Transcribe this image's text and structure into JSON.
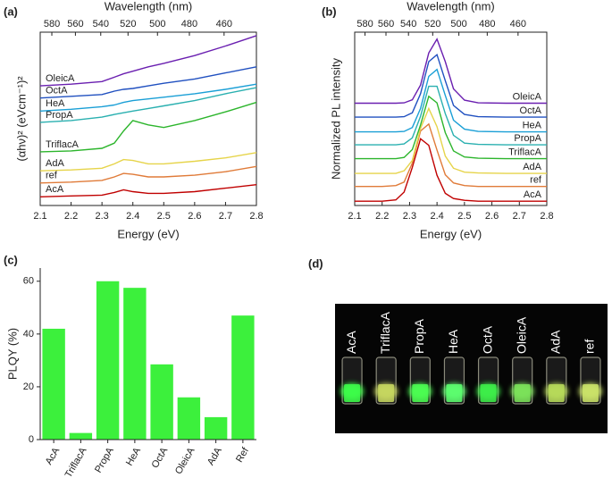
{
  "chart_data": [
    {
      "type": "line",
      "panel": "(a)",
      "xlabel": "Energy (eV)",
      "ylabel": "(αhν)² (eVcm⁻¹)²",
      "top_label": "Wavelength (nm)",
      "xlim": [
        2.1,
        2.8
      ],
      "xticks": [
        2.1,
        2.2,
        2.3,
        2.4,
        2.5,
        2.6,
        2.7,
        2.8
      ],
      "top_ticks": [
        580,
        560,
        540,
        520,
        500,
        480,
        460
      ],
      "ylim": [
        0,
        20
      ],
      "x": [
        2.1,
        2.2,
        2.3,
        2.34,
        2.37,
        2.4,
        2.45,
        2.5,
        2.6,
        2.7,
        2.8
      ],
      "series": [
        {
          "name": "AcA",
          "color": "#c00000",
          "values": [
            1.0,
            1.1,
            1.2,
            1.5,
            1.8,
            1.6,
            1.4,
            1.4,
            1.6,
            2.0,
            2.4
          ]
        },
        {
          "name": "ref",
          "color": "#e07b39",
          "values": [
            2.6,
            2.7,
            2.9,
            3.3,
            3.7,
            3.6,
            3.3,
            3.3,
            3.5,
            3.9,
            4.5
          ]
        },
        {
          "name": "AdA",
          "color": "#e6d44a",
          "values": [
            4.0,
            4.1,
            4.3,
            4.8,
            5.3,
            5.2,
            4.8,
            4.8,
            5.1,
            5.5,
            6.1
          ]
        },
        {
          "name": "TriflacA",
          "color": "#2cb52c",
          "values": [
            6.2,
            6.3,
            6.6,
            7.2,
            8.6,
            9.8,
            9.3,
            9.0,
            9.8,
            10.8,
            11.9
          ]
        },
        {
          "name": "PropA",
          "color": "#2ab0b0",
          "values": [
            9.6,
            9.8,
            10.2,
            10.5,
            10.7,
            10.9,
            11.2,
            11.5,
            12.1,
            12.9,
            13.6
          ]
        },
        {
          "name": "HeA",
          "color": "#1a9fd6",
          "values": [
            10.9,
            11.1,
            11.4,
            11.6,
            11.9,
            12.1,
            12.3,
            12.5,
            12.9,
            13.4,
            14.0
          ]
        },
        {
          "name": "OctA",
          "color": "#2050c0",
          "values": [
            12.4,
            12.6,
            12.8,
            13.2,
            13.4,
            13.5,
            13.8,
            14.1,
            14.6,
            15.3,
            16.0
          ]
        },
        {
          "name": "OleicA",
          "color": "#6a1fb0",
          "values": [
            13.8,
            14.0,
            14.3,
            14.8,
            15.2,
            15.5,
            16.0,
            16.4,
            17.3,
            18.4,
            19.6
          ]
        }
      ]
    },
    {
      "type": "line",
      "panel": "(b)",
      "xlabel": "Energy (eV)",
      "ylabel": "Normalized PL intensity",
      "top_label": "Wavelength (nm)",
      "xlim": [
        2.1,
        2.8
      ],
      "xticks": [
        2.1,
        2.2,
        2.3,
        2.4,
        2.5,
        2.6,
        2.7,
        2.8
      ],
      "top_ticks": [
        580,
        560,
        540,
        520,
        500,
        480,
        460
      ],
      "ylim": [
        0,
        20
      ],
      "legend": "right",
      "x": [
        2.1,
        2.2,
        2.25,
        2.28,
        2.31,
        2.34,
        2.37,
        2.4,
        2.43,
        2.46,
        2.5,
        2.55,
        2.65,
        2.8
      ],
      "series": [
        {
          "name": "AcA",
          "color": "#c00000",
          "values": [
            0.5,
            0.5,
            0.65,
            1.55,
            4.4,
            7.7,
            6.95,
            3.5,
            1.4,
            0.8,
            0.6,
            0.5,
            0.5,
            0.5
          ]
        },
        {
          "name": "ref",
          "color": "#e07b39",
          "values": [
            2.2,
            2.2,
            2.3,
            2.7,
            4.9,
            8.6,
            9.4,
            6.4,
            3.55,
            2.6,
            2.3,
            2.2,
            2.2,
            2.2
          ]
        },
        {
          "name": "AdA",
          "color": "#e6d44a",
          "values": [
            3.7,
            3.7,
            3.7,
            4.0,
            5.2,
            8.9,
            11.2,
            9.1,
            5.7,
            4.3,
            3.85,
            3.75,
            3.7,
            3.7
          ]
        },
        {
          "name": "TriflacA",
          "color": "#2cb52c",
          "values": [
            5.4,
            5.4,
            5.4,
            5.55,
            6.45,
            9.3,
            12.6,
            11.85,
            8.4,
            6.3,
            5.6,
            5.45,
            5.4,
            5.4
          ]
        },
        {
          "name": "PropA",
          "color": "#2ab0b0",
          "values": [
            7.0,
            7.0,
            7.0,
            7.1,
            7.8,
            10.3,
            13.75,
            13.75,
            10.6,
            8.1,
            7.2,
            7.05,
            7.0,
            7.0
          ]
        },
        {
          "name": "HeA",
          "color": "#1a9fd6",
          "values": [
            8.5,
            8.5,
            8.5,
            8.55,
            9.0,
            11.2,
            14.9,
            15.7,
            12.7,
            9.85,
            8.8,
            8.55,
            8.5,
            8.5
          ]
        },
        {
          "name": "OctA",
          "color": "#2050c0",
          "values": [
            10.2,
            10.2,
            10.2,
            10.25,
            10.7,
            12.9,
            16.6,
            17.4,
            14.4,
            11.55,
            10.5,
            10.25,
            10.2,
            10.2
          ]
        },
        {
          "name": "OleicA",
          "color": "#6a1fb0",
          "values": [
            11.8,
            11.8,
            11.8,
            11.85,
            12.2,
            13.9,
            17.6,
            19.2,
            16.6,
            13.45,
            12.15,
            11.85,
            11.8,
            11.8
          ]
        }
      ]
    },
    {
      "type": "bar",
      "panel": "(c)",
      "ylabel": "PLQY (%)",
      "categories": [
        "AcA",
        "TriflacA",
        "PropA",
        "HeA",
        "OctA",
        "OleicA",
        "AdA",
        "Ref"
      ],
      "values": [
        42,
        2.5,
        60,
        57.5,
        28.5,
        16,
        8.5,
        47
      ],
      "color": "#3cf03c",
      "ylim": [
        0,
        65
      ],
      "yticks": [
        0,
        20,
        40,
        60
      ]
    },
    {
      "type": "photo",
      "panel": "(d)",
      "labels": [
        "AcA",
        "TriflacA",
        "PropA",
        "HeA",
        "OctA",
        "OleicA",
        "AdA",
        "ref"
      ],
      "glow_colors": [
        "#3dff4a",
        "#c8d860",
        "#4cff52",
        "#5dff70",
        "#3ef04a",
        "#7ce45a",
        "#b8dc5a",
        "#cce46a"
      ]
    }
  ]
}
